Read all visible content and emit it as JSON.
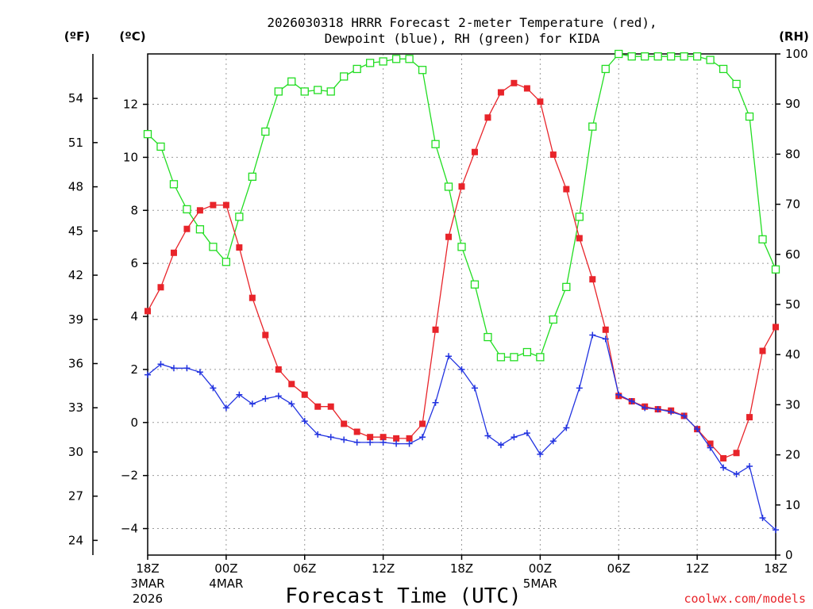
{
  "chart_data": {
    "type": "line",
    "title_line1": "2026030318 HRRR Forecast 2-meter Temperature (red),",
    "title_line2": "Dewpoint (blue), RH (green) for KIDA",
    "xlabel": "Forecast Time (UTC)",
    "credit": "coolwx.com/models",
    "unit_f": "(ºF)",
    "unit_c": "(ºC)",
    "unit_rh": "(RH)",
    "x_ticks": [
      {
        "h": 0,
        "label": "18Z",
        "sub1": "3MAR",
        "sub2": "2026"
      },
      {
        "h": 6,
        "label": "00Z",
        "sub1": "4MAR",
        "sub2": ""
      },
      {
        "h": 12,
        "label": "06Z",
        "sub1": "",
        "sub2": ""
      },
      {
        "h": 18,
        "label": "12Z",
        "sub1": "",
        "sub2": ""
      },
      {
        "h": 24,
        "label": "18Z",
        "sub1": "",
        "sub2": ""
      },
      {
        "h": 30,
        "label": "00Z",
        "sub1": "5MAR",
        "sub2": ""
      },
      {
        "h": 36,
        "label": "06Z",
        "sub1": "",
        "sub2": ""
      },
      {
        "h": 42,
        "label": "12Z",
        "sub1": "",
        "sub2": ""
      },
      {
        "h": 48,
        "label": "18Z",
        "sub1": "",
        "sub2": ""
      }
    ],
    "xlim": [
      0,
      48
    ],
    "ylim_c": [
      -5,
      13.9
    ],
    "ylim_rh": [
      0,
      100
    ],
    "y_ticks_c": [
      -4,
      -2,
      0,
      2,
      4,
      6,
      8,
      10,
      12
    ],
    "y_ticks_c_labels": [
      "−4",
      "−2",
      "0",
      "2",
      "4",
      "6",
      "8",
      "10",
      "12"
    ],
    "y_ticks_f": [
      24,
      27,
      30,
      33,
      36,
      39,
      42,
      45,
      48,
      51,
      54
    ],
    "y_ticks_rh": [
      0,
      10,
      20,
      30,
      40,
      50,
      60,
      70,
      80,
      90,
      100
    ],
    "series": [
      {
        "name": "Temperature",
        "unit": "C",
        "color": "#e8242a",
        "marker": "filled-square",
        "values": [
          4.2,
          5.1,
          6.4,
          7.3,
          8.0,
          8.2,
          8.2,
          6.6,
          4.7,
          3.3,
          2.0,
          1.45,
          1.05,
          0.6,
          0.6,
          -0.05,
          -0.35,
          -0.55,
          -0.55,
          -0.6,
          -0.6,
          -0.05,
          3.5,
          7.0,
          8.9,
          10.2,
          11.5,
          12.45,
          12.8,
          12.6,
          12.1,
          10.1,
          8.8,
          6.95,
          5.4,
          3.5,
          1.0,
          0.8,
          0.6,
          0.5,
          0.45,
          0.25,
          -0.25,
          -0.8,
          -1.35,
          -1.15,
          0.2,
          2.7,
          3.6
        ]
      },
      {
        "name": "Dewpoint",
        "unit": "C",
        "color": "#2233e0",
        "marker": "plus",
        "values": [
          1.8,
          2.2,
          2.05,
          2.05,
          1.9,
          1.3,
          0.55,
          1.05,
          0.7,
          0.9,
          1.0,
          0.7,
          0.05,
          -0.45,
          -0.55,
          -0.65,
          -0.75,
          -0.75,
          -0.75,
          -0.8,
          -0.8,
          -0.55,
          0.75,
          2.5,
          2.0,
          1.3,
          -0.5,
          -0.85,
          -0.55,
          -0.4,
          -1.2,
          -0.7,
          -0.2,
          1.3,
          3.3,
          3.15,
          1.05,
          0.8,
          0.55,
          0.5,
          0.4,
          0.25,
          -0.25,
          -0.95,
          -1.7,
          -1.95,
          -1.65,
          -3.6,
          -4.05
        ]
      },
      {
        "name": "RH",
        "unit": "%",
        "color": "#22dd22",
        "marker": "open-square",
        "values": [
          84,
          81.5,
          74,
          69,
          65,
          61.5,
          58.5,
          67.5,
          75.5,
          84.5,
          92.5,
          94.5,
          92.5,
          92.8,
          92.5,
          95.5,
          97,
          98.2,
          98.5,
          99,
          99,
          96.8,
          82,
          73.5,
          61.5,
          54,
          43.5,
          39.5,
          39.5,
          40.5,
          39.5,
          47,
          53.5,
          67.5,
          85.5,
          97,
          100,
          99.5,
          99.5,
          99.5,
          99.5,
          99.5,
          99.5,
          98.8,
          97,
          94,
          87.5,
          63,
          57
        ]
      }
    ]
  }
}
